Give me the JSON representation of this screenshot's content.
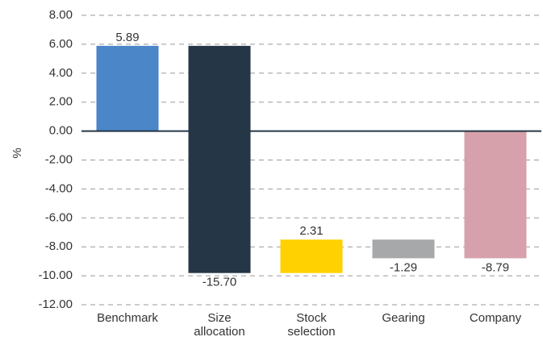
{
  "chart_data": {
    "type": "waterfall",
    "categories": [
      "Benchmark",
      "Size allocation",
      "Stock selection",
      "Gearing",
      "Company"
    ],
    "values": [
      5.89,
      -15.7,
      2.31,
      -1.29,
      -8.79
    ],
    "value_labels": [
      "5.89",
      "-15.70",
      "2.31",
      "-1.29",
      "-8.79"
    ],
    "colors": [
      "#4a86c8",
      "#253746",
      "#ffd100",
      "#a7a8aa",
      "#d6a1aa"
    ],
    "ylabel": "%",
    "ylim": [
      -12,
      8
    ],
    "yticks": [
      {
        "value": 8,
        "label": "8.00"
      },
      {
        "value": 6,
        "label": "6.00"
      },
      {
        "value": 4,
        "label": "4.00"
      },
      {
        "value": 2,
        "label": "2.00"
      },
      {
        "value": 0,
        "label": "0.00"
      },
      {
        "value": -2,
        "label": "-2.00"
      },
      {
        "value": -4,
        "label": "-4.00"
      },
      {
        "value": -6,
        "label": "-6.00"
      },
      {
        "value": -8,
        "label": "-8.00"
      },
      {
        "value": -10,
        "label": "-10.00"
      },
      {
        "value": -12,
        "label": "-12.00"
      }
    ],
    "grid": true
  }
}
